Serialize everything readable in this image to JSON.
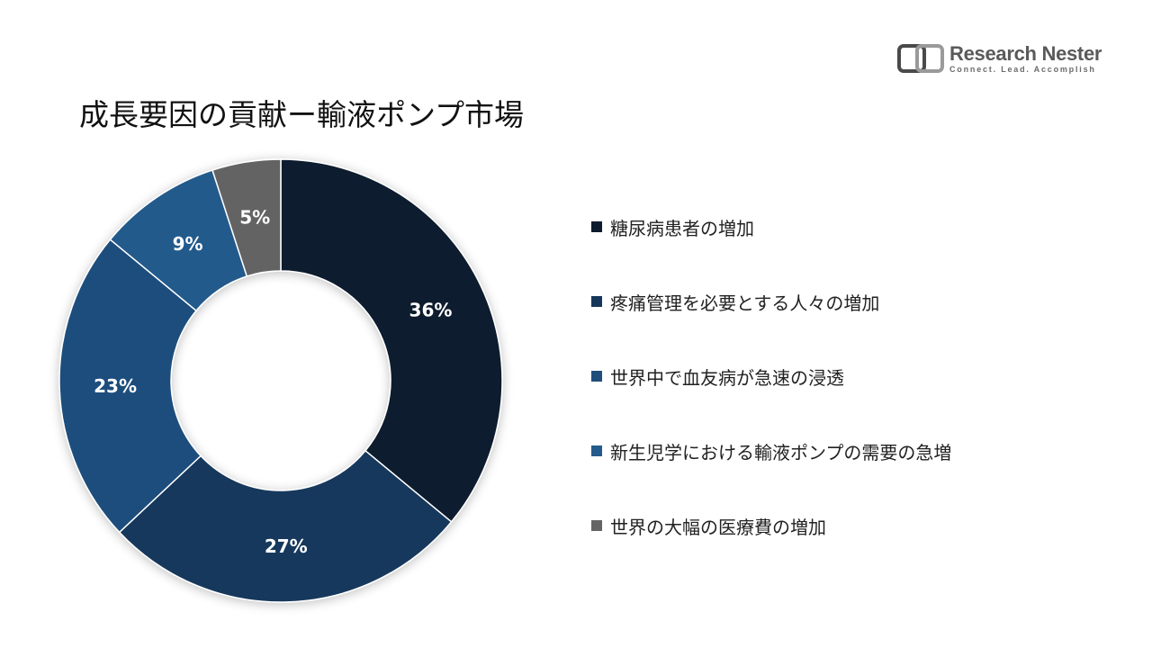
{
  "logo": {
    "name": "Research Nester",
    "tagline": "Connect. Lead. Accomplish"
  },
  "title": "成長要因の貢献ー輸液ポンプ市場",
  "chart_data": {
    "type": "pie",
    "variant": "donut",
    "categories": [
      "糖尿病患者の増加",
      "疼痛管理を必要とする人々の増加",
      "世界中で血友病が急速の浸透",
      "新生児学における輸液ポンプの需要の急増",
      "世界の大幅の医療費の増加"
    ],
    "values": [
      36,
      27,
      23,
      9,
      5
    ],
    "data_labels": [
      "36%",
      "27%",
      "23%",
      "9%",
      "5%"
    ],
    "colors": [
      "#0d1b2e",
      "#16375b",
      "#1f4e7c",
      "#245a8c",
      "#646464"
    ],
    "legend_colors": [
      "#0d1b2e",
      "#16375b",
      "#1f4e7c",
      "#245a8c",
      "#646464"
    ],
    "legend_position": "right",
    "start_angle": "12 o'clock",
    "direction": "clockwise"
  }
}
